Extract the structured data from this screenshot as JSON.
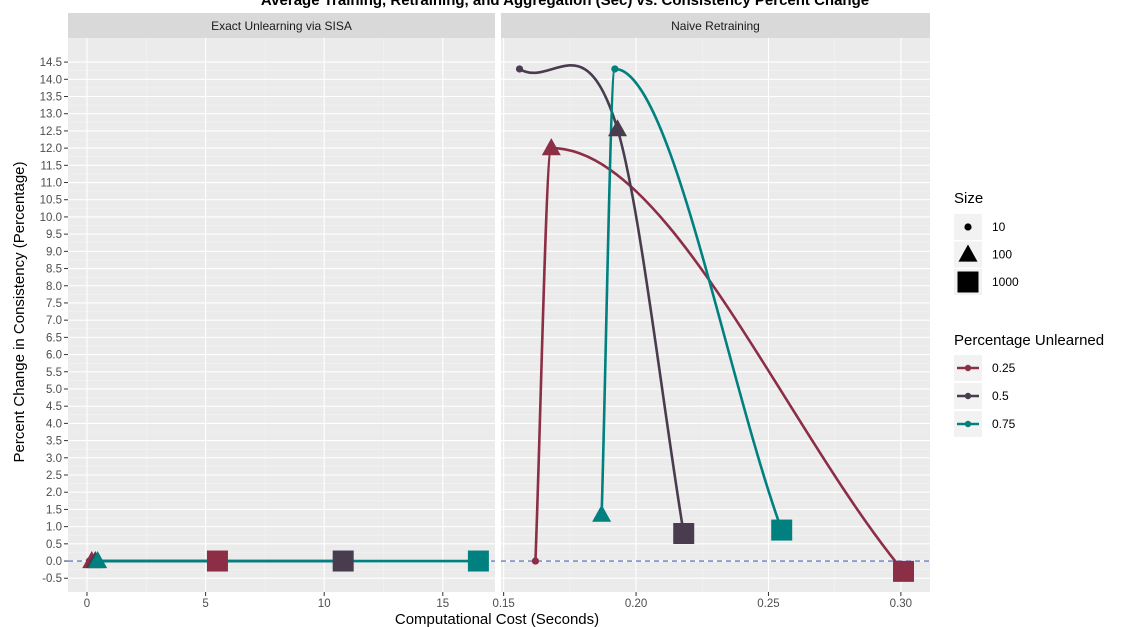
{
  "title": "Average Training, Retraining, and Aggregation (Sec) vs. Consistency Percent Change",
  "chart_data": {
    "type": "line",
    "xlabel": "Computational Cost (Seconds)",
    "ylabel": "Percent Change in Consistency (Percentage)",
    "ylim": [
      -0.9,
      15.2
    ],
    "yticks": [
      -0.5,
      0.0,
      0.5,
      1.0,
      1.5,
      2.0,
      2.5,
      3.0,
      3.5,
      4.0,
      4.5,
      5.0,
      5.5,
      6.0,
      6.5,
      7.0,
      7.5,
      8.0,
      8.5,
      9.0,
      9.5,
      10.0,
      10.5,
      11.0,
      11.5,
      12.0,
      12.5,
      13.0,
      13.5,
      14.0,
      14.5
    ],
    "ytick_labels": [
      "-0.5",
      "0.0",
      "0.5",
      "1.0",
      "1.5",
      "2.0",
      "2.5",
      "3.0",
      "3.5",
      "4.0",
      "4.5",
      "5.0",
      "5.5",
      "6.0",
      "6.5",
      "7.0",
      "7.5",
      "8.0",
      "8.5",
      "9.0",
      "9.5",
      "10.0",
      "10.5",
      "11.0",
      "11.5",
      "12.0",
      "12.5",
      "13.0",
      "13.5",
      "14.0",
      "14.5"
    ],
    "reference_line": {
      "y": 0,
      "style": "dashed",
      "color": "#6b7fc4"
    },
    "grid": true,
    "colors": {
      "0.25": "#8b2e46",
      "0.5": "#4a3c4f",
      "0.75": "#00807f"
    },
    "facets": [
      {
        "label": "Exact Unlearning via SISA",
        "xlim": [
          -0.8,
          17.2
        ],
        "xticks": [
          0,
          5,
          10,
          15
        ],
        "xtick_labels": [
          "0",
          "5",
          "10",
          "15"
        ],
        "series": [
          {
            "name": "0.25",
            "points": [
              {
                "x": 0.1,
                "y": 0.0,
                "size": "10"
              },
              {
                "x": 0.2,
                "y": 0.0,
                "size": "100"
              },
              {
                "x": 5.5,
                "y": 0.0,
                "size": "1000"
              }
            ]
          },
          {
            "name": "0.5",
            "points": [
              {
                "x": 0.25,
                "y": 0.0,
                "size": "10"
              },
              {
                "x": 0.35,
                "y": 0.0,
                "size": "100"
              },
              {
                "x": 10.8,
                "y": 0.0,
                "size": "1000"
              }
            ]
          },
          {
            "name": "0.75",
            "points": [
              {
                "x": 0.4,
                "y": 0.0,
                "size": "10"
              },
              {
                "x": 0.45,
                "y": 0.0,
                "size": "100"
              },
              {
                "x": 16.5,
                "y": 0.0,
                "size": "1000"
              }
            ]
          }
        ]
      },
      {
        "label": "Naive Retraining",
        "xlim": [
          0.149,
          0.311
        ],
        "xticks": [
          0.15,
          0.2,
          0.25,
          0.3
        ],
        "xtick_labels": [
          "0.15",
          "0.20",
          "0.25",
          "0.30"
        ],
        "series": [
          {
            "name": "0.25",
            "points": [
              {
                "x": 0.162,
                "y": 0.0,
                "size": "10"
              },
              {
                "x": 0.168,
                "y": 12.0,
                "size": "100"
              },
              {
                "x": 0.301,
                "y": -0.3,
                "size": "1000"
              }
            ]
          },
          {
            "name": "0.5",
            "points": [
              {
                "x": 0.156,
                "y": 14.3,
                "size": "10"
              },
              {
                "x": 0.193,
                "y": 12.55,
                "size": "100"
              },
              {
                "x": 0.218,
                "y": 0.8,
                "size": "1000"
              }
            ]
          },
          {
            "name": "0.75",
            "points": [
              {
                "x": 0.192,
                "y": 14.3,
                "size": "10"
              },
              {
                "x": 0.187,
                "y": 1.35,
                "size": "100"
              },
              {
                "x": 0.255,
                "y": 0.9,
                "size": "1000"
              }
            ]
          }
        ]
      }
    ],
    "legends": {
      "size": {
        "title": "Size",
        "items": [
          "10",
          "100",
          "1000"
        ]
      },
      "color": {
        "title": "Percentage Unlearned",
        "items": [
          "0.25",
          "0.5",
          "0.75"
        ]
      }
    }
  }
}
